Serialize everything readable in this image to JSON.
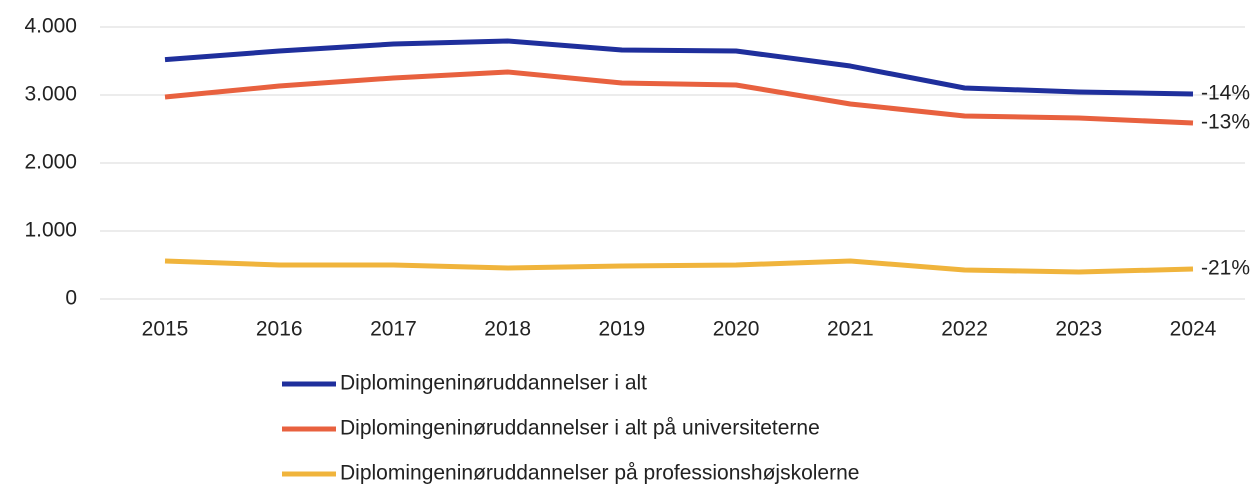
{
  "chart_data": {
    "type": "line",
    "x": [
      "2015",
      "2016",
      "2017",
      "2018",
      "2019",
      "2020",
      "2021",
      "2022",
      "2023",
      "2024"
    ],
    "series": [
      {
        "name": "Diplomingeninøruddannelser i alt",
        "color": "#1f2f9c",
        "end_label": "-14%",
        "values": [
          3520,
          3647,
          3750,
          3794,
          3662,
          3647,
          3426,
          3103,
          3044,
          3015
        ]
      },
      {
        "name": "Diplomingeninøruddannelser i alt på universiteterne",
        "color": "#e8613f",
        "end_label": "-13%",
        "values": [
          2970,
          3132,
          3250,
          3338,
          3176,
          3147,
          2868,
          2691,
          2662,
          2588
        ]
      },
      {
        "name": "Diplomingeninøruddannelser på professionshøjskolerne",
        "color": "#f0b43c",
        "end_label": "-21%",
        "values": [
          559,
          500,
          500,
          456,
          485,
          500,
          559,
          426,
          397,
          441
        ]
      }
    ],
    "ylim": [
      0,
      4000
    ],
    "yticks": [
      0,
      {
        "value": 1000,
        "label": "1.000"
      },
      {
        "value": 2000,
        "label": "2.000"
      },
      {
        "value": 3000,
        "label": "3.000"
      },
      {
        "value": 4000,
        "label": "4.000"
      }
    ],
    "grid": true
  }
}
